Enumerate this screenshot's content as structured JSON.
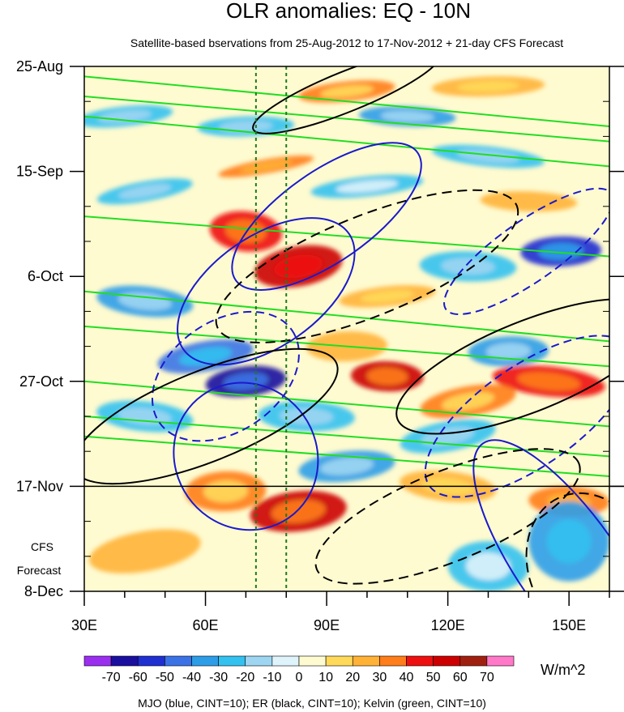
{
  "chart_data": {
    "type": "heatmap",
    "title": "OLR anomalies: EQ - 10N",
    "subtitle": "Satellite-based bservations from 25-Aug-2012 to 17-Nov-2012 + 21-day CFS Forecast",
    "xaxis": {
      "range": [
        30,
        160
      ],
      "ticks": [
        {
          "value": 30,
          "label": "30E"
        },
        {
          "value": 60,
          "label": "60E"
        },
        {
          "value": 90,
          "label": "90E"
        },
        {
          "value": 120,
          "label": "120E"
        },
        {
          "value": 150,
          "label": "150E"
        }
      ]
    },
    "yaxis": {
      "range_days": [
        0,
        105
      ],
      "ticks": [
        {
          "day": 0,
          "label": "25-Aug"
        },
        {
          "day": 21,
          "label": "15-Sep"
        },
        {
          "day": 42,
          "label": "6-Oct"
        },
        {
          "day": 63,
          "label": "27-Oct"
        },
        {
          "day": 84,
          "label": "17-Nov"
        },
        {
          "day": 105,
          "label": "8-Dec"
        }
      ]
    },
    "forecast_start_day": 84,
    "forecast_label_line1": "CFS",
    "forecast_label_line2": "Forecast",
    "reference_lines_lon": [
      72.5,
      80
    ],
    "colorbar": {
      "unit": "W/m^2",
      "levels": [
        -70,
        -60,
        -50,
        -40,
        -30,
        -20,
        -10,
        0,
        10,
        20,
        30,
        40,
        50,
        60,
        70
      ],
      "labels": [
        "-70",
        "-60",
        "-50",
        "-40",
        "-30",
        "-20",
        "-10",
        "0",
        "10",
        "20",
        "30",
        "40",
        "50",
        "60",
        "70"
      ],
      "colors": [
        "#9b2ff0",
        "#1a0f9e",
        "#1f2fd0",
        "#3b73e6",
        "#2d9de8",
        "#33c1f0",
        "#9ed6f2",
        "#dff3fb",
        "#fffbd0",
        "#ffd95a",
        "#ffb236",
        "#ff7d1a",
        "#ee1010",
        "#cc0000",
        "#a02010",
        "#ff79c8"
      ]
    },
    "features": {
      "warm_anomalies": [
        {
          "lon": 75,
          "day": 20,
          "value": 35,
          "wlon": 12,
          "wday": 1.4
        },
        {
          "lon": 95,
          "day": 5,
          "value": 30,
          "wlon": 12,
          "wday": 2
        },
        {
          "lon": 130,
          "day": 4,
          "value": 25,
          "wlon": 14,
          "wday": 2
        },
        {
          "lon": 140,
          "day": 27,
          "value": 22,
          "wlon": 12,
          "wday": 2
        },
        {
          "lon": 70,
          "day": 33,
          "value": 45,
          "wlon": 9,
          "wday": 4
        },
        {
          "lon": 83,
          "day": 40,
          "value": 55,
          "wlon": 11,
          "wday": 4
        },
        {
          "lon": 105,
          "day": 46,
          "value": 25,
          "wlon": 12,
          "wday": 2
        },
        {
          "lon": 95,
          "day": 56,
          "value": 22,
          "wlon": 10,
          "wday": 3
        },
        {
          "lon": 105,
          "day": 62,
          "value": 50,
          "wlon": 9,
          "wday": 3
        },
        {
          "lon": 145,
          "day": 63,
          "value": 45,
          "wlon": 14,
          "wday": 3
        },
        {
          "lon": 125,
          "day": 67,
          "value": 30,
          "wlon": 12,
          "wday": 3
        },
        {
          "lon": 83,
          "day": 89,
          "value": 52,
          "wlon": 12,
          "wday": 4
        },
        {
          "lon": 65,
          "day": 85,
          "value": 30,
          "wlon": 10,
          "wday": 4
        },
        {
          "lon": 150,
          "day": 87,
          "value": 38,
          "wlon": 10,
          "wday": 3
        },
        {
          "lon": 120,
          "day": 84,
          "value": 25,
          "wlon": 12,
          "wday": 3
        },
        {
          "lon": 45,
          "day": 97,
          "value": 20,
          "wlon": 14,
          "wday": 4
        }
      ],
      "cold_anomalies": [
        {
          "lon": 40,
          "day": 10,
          "value": -30,
          "wlon": 12,
          "wday": 2
        },
        {
          "lon": 70,
          "day": 12,
          "value": -30,
          "wlon": 12,
          "wday": 2
        },
        {
          "lon": 110,
          "day": 10,
          "value": -35,
          "wlon": 12,
          "wday": 2
        },
        {
          "lon": 130,
          "day": 18,
          "value": -28,
          "wlon": 14,
          "wday": 2
        },
        {
          "lon": 45,
          "day": 25,
          "value": -30,
          "wlon": 12,
          "wday": 2
        },
        {
          "lon": 100,
          "day": 24,
          "value": -25,
          "wlon": 14,
          "wday": 2
        },
        {
          "lon": 148,
          "day": 37,
          "value": -55,
          "wlon": 10,
          "wday": 3
        },
        {
          "lon": 125,
          "day": 40,
          "value": -30,
          "wlon": 12,
          "wday": 3
        },
        {
          "lon": 45,
          "day": 47,
          "value": -35,
          "wlon": 12,
          "wday": 3
        },
        {
          "lon": 60,
          "day": 58,
          "value": -45,
          "wlon": 12,
          "wday": 3
        },
        {
          "lon": 70,
          "day": 63,
          "value": -65,
          "wlon": 10,
          "wday": 3
        },
        {
          "lon": 135,
          "day": 57,
          "value": -35,
          "wlon": 10,
          "wday": 3
        },
        {
          "lon": 85,
          "day": 70,
          "value": -30,
          "wlon": 12,
          "wday": 3
        },
        {
          "lon": 45,
          "day": 70,
          "value": -30,
          "wlon": 12,
          "wday": 3
        },
        {
          "lon": 120,
          "day": 74,
          "value": -30,
          "wlon": 12,
          "wday": 3
        },
        {
          "lon": 95,
          "day": 80,
          "value": -32,
          "wlon": 12,
          "wday": 3
        },
        {
          "lon": 150,
          "day": 95,
          "value": -40,
          "wlon": 10,
          "wday": 8
        },
        {
          "lon": 130,
          "day": 100,
          "value": -25,
          "wlon": 10,
          "wday": 5
        }
      ]
    },
    "contour_series": [
      {
        "name": "MJO",
        "color": "blue",
        "cint": 10
      },
      {
        "name": "ER",
        "color": "black",
        "cint": 10
      },
      {
        "name": "Kelvin",
        "color": "green",
        "cint": 10
      }
    ]
  },
  "footer": "MJO (blue, CINT=10); ER (black, CINT=10); Kelvin (green, CINT=10)"
}
